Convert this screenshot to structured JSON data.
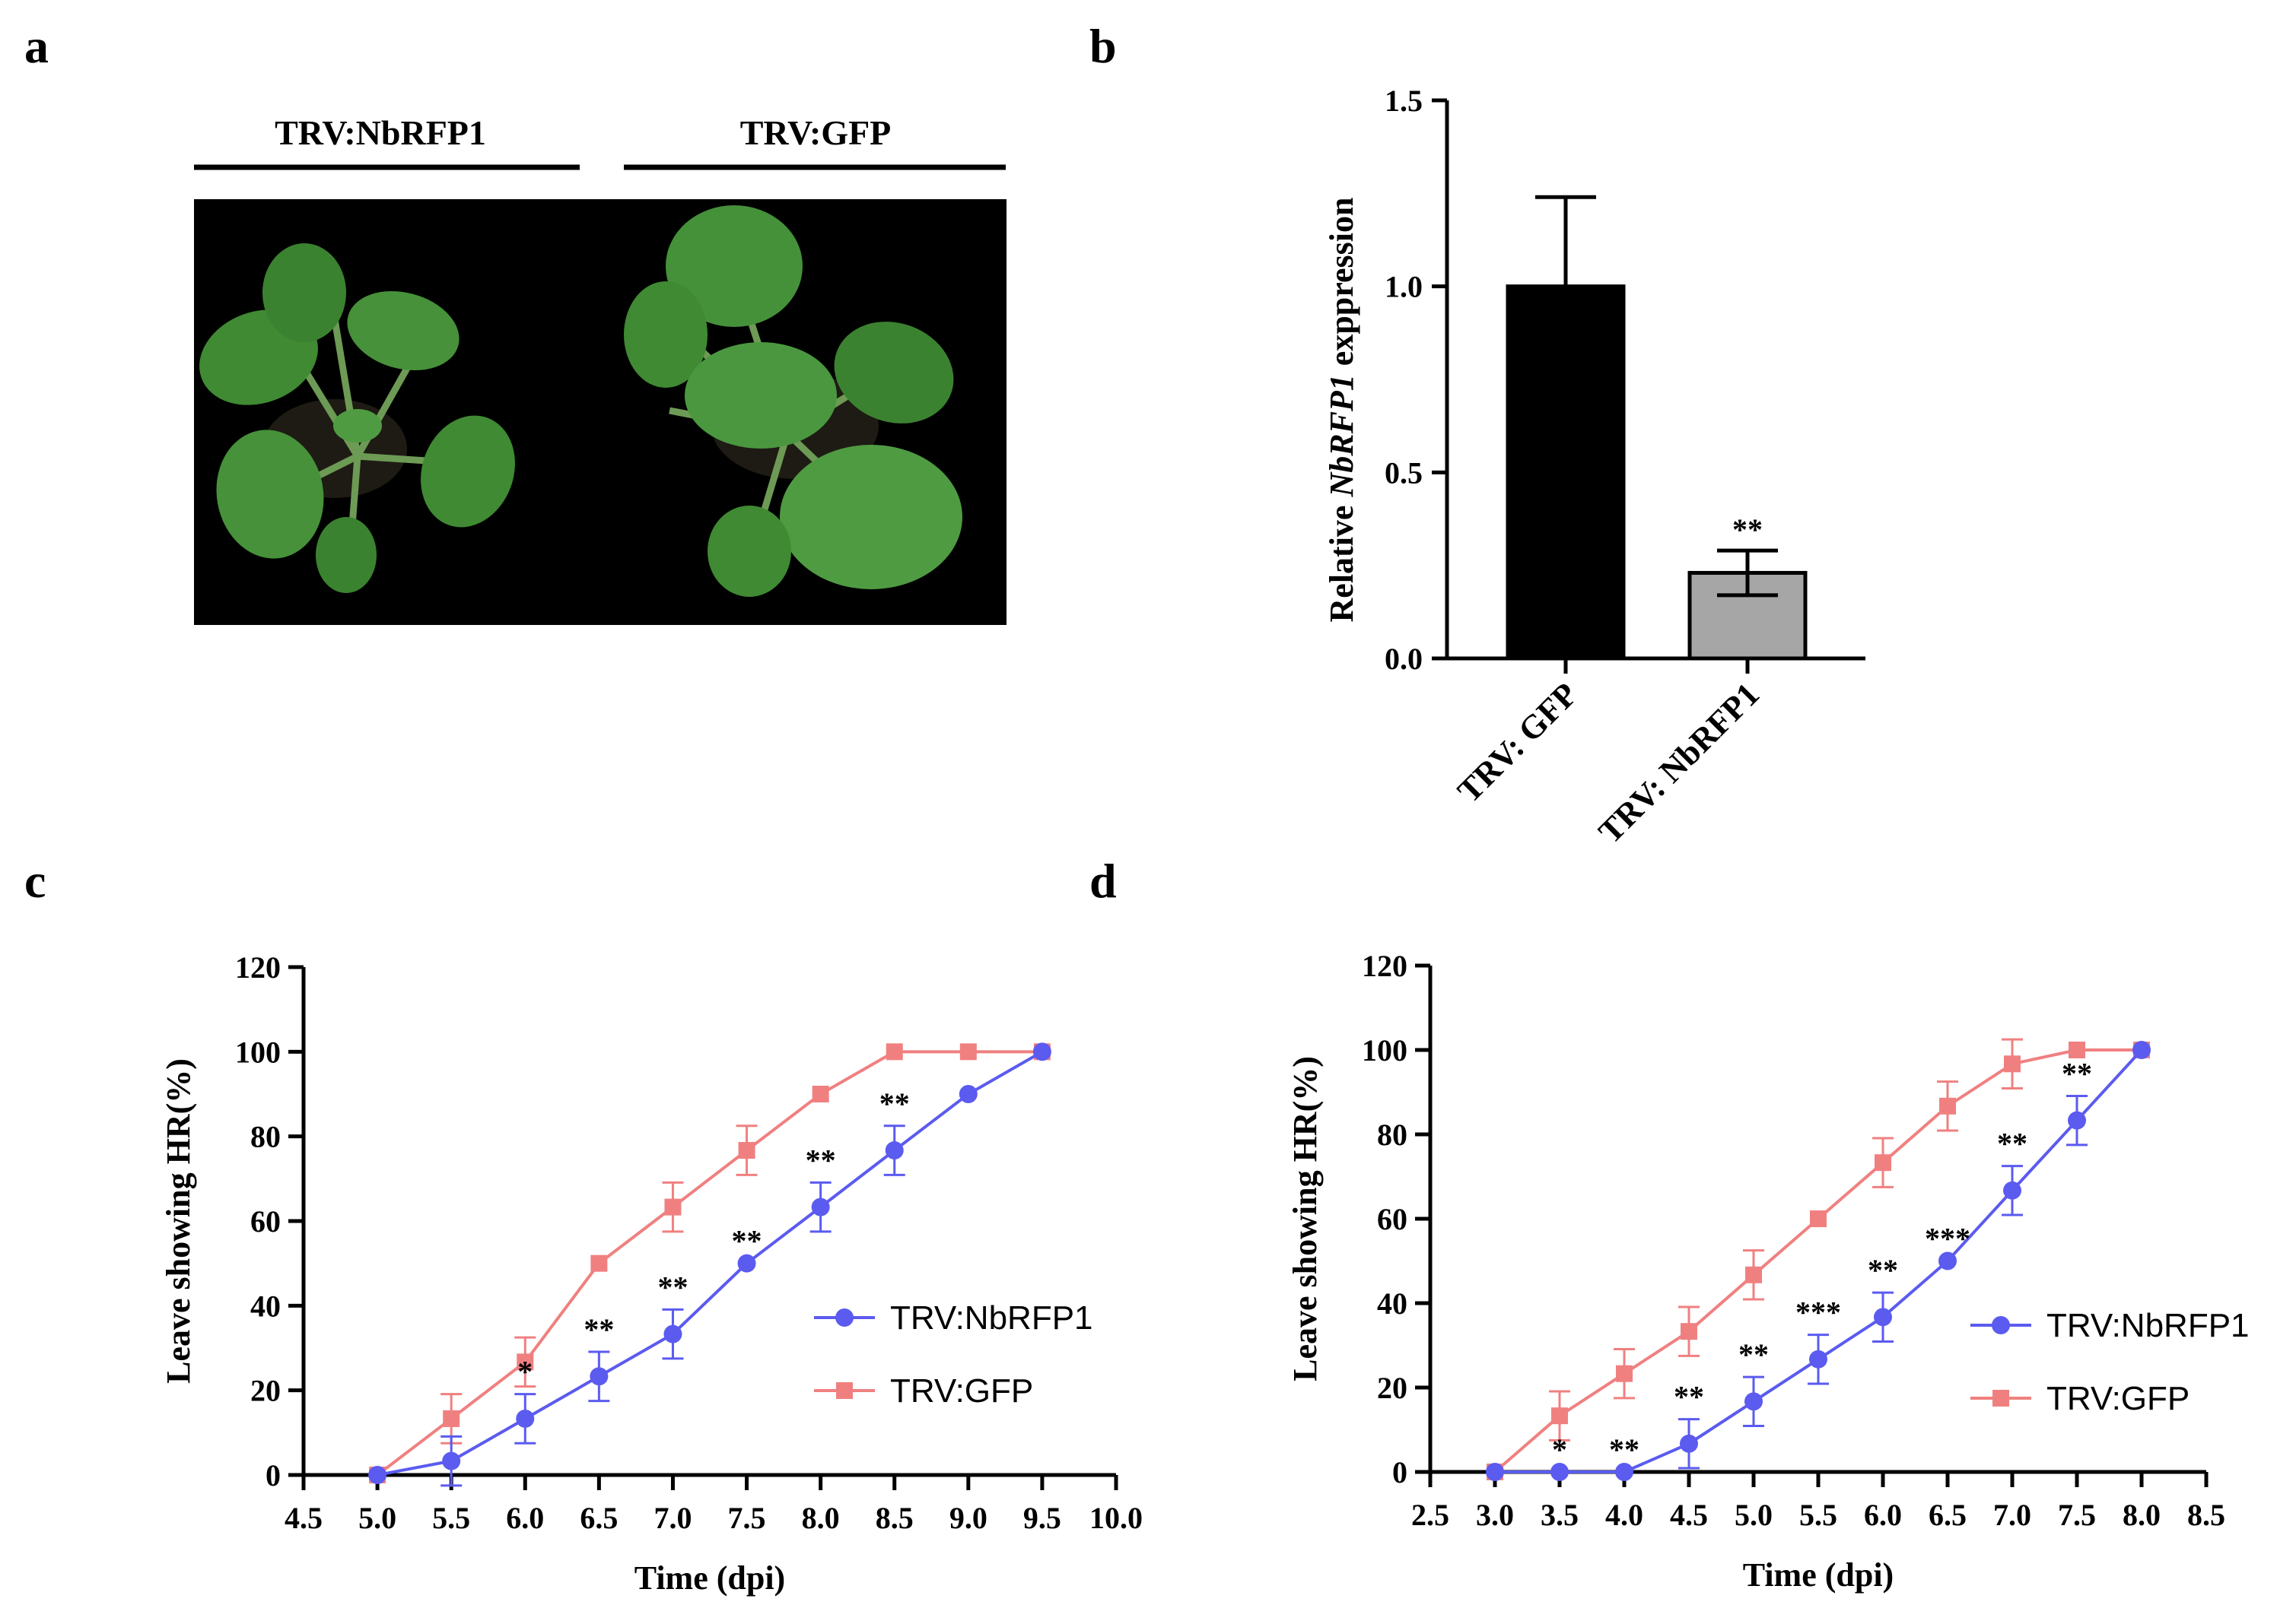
{
  "panels": {
    "a": {
      "letter": "a",
      "label_left": "TRV:NbRFP1",
      "label_right": "TRV:GFP"
    },
    "b": {
      "letter": "b"
    },
    "c": {
      "letter": "c"
    },
    "d": {
      "letter": "d"
    }
  },
  "chart_data": [
    {
      "id": "b",
      "type": "bar",
      "ylabel_prefix": "Relative ",
      "ylabel_gene": "NbRFP1",
      "ylabel_suffix": " exppression",
      "categories": [
        "TRV: GFP",
        "TRV: NbRFP1"
      ],
      "values": [
        1.0,
        0.23
      ],
      "errors": [
        0.24,
        0.06
      ],
      "bar_colors": [
        "#000000",
        "#a6a6a6"
      ],
      "significance": [
        "",
        "**"
      ],
      "ylim": [
        0,
        1.5
      ],
      "yticks": [
        "0.0",
        "0.5",
        "1.0",
        "1.5"
      ],
      "ytick_values": [
        0,
        0.5,
        1.0,
        1.5
      ]
    },
    {
      "id": "c",
      "type": "line",
      "xlabel": "Time (dpi)",
      "ylabel": "Leave showing HR(%)",
      "xlim": [
        4.5,
        10.0
      ],
      "ylim": [
        0,
        120
      ],
      "xticks": [
        "4.5",
        "5.0",
        "5.5",
        "6.0",
        "6.5",
        "7.0",
        "7.5",
        "8.0",
        "8.5",
        "9.0",
        "9.5",
        "10.0"
      ],
      "xtick_values": [
        4.5,
        5.0,
        5.5,
        6.0,
        6.5,
        7.0,
        7.5,
        8.0,
        8.5,
        9.0,
        9.5,
        10.0
      ],
      "yticks": [
        "0",
        "20",
        "40",
        "60",
        "80",
        "100",
        "120"
      ],
      "ytick_values": [
        0,
        20,
        40,
        60,
        80,
        100,
        120
      ],
      "series": [
        {
          "name": "TRV:NbRFP1",
          "color": "#5b5bf0",
          "marker": "circle",
          "x": [
            5.0,
            5.5,
            6.0,
            6.5,
            7.0,
            7.5,
            8.0,
            8.5,
            9.0,
            9.5
          ],
          "y": [
            0,
            3.3,
            13.3,
            23.3,
            33.3,
            50,
            63.3,
            76.7,
            90,
            100
          ],
          "err": [
            0,
            5.8,
            5.8,
            5.8,
            5.8,
            0,
            5.8,
            5.8,
            0,
            0
          ]
        },
        {
          "name": "TRV:GFP",
          "color": "#f08080",
          "marker": "square",
          "x": [
            5.0,
            5.5,
            6.0,
            6.5,
            7.0,
            7.5,
            8.0,
            8.5,
            9.0,
            9.5
          ],
          "y": [
            0,
            13.3,
            26.7,
            50,
            63.3,
            76.7,
            90,
            100,
            100,
            100
          ],
          "err": [
            0,
            5.8,
            5.8,
            0,
            5.8,
            5.8,
            0,
            0,
            0,
            0
          ]
        }
      ],
      "significance": [
        {
          "x": 6.0,
          "y": 13.3,
          "label": "*"
        },
        {
          "x": 6.5,
          "y": 23.3,
          "label": "**"
        },
        {
          "x": 7.0,
          "y": 33.3,
          "label": "**"
        },
        {
          "x": 7.5,
          "y": 50,
          "label": "**"
        },
        {
          "x": 8.0,
          "y": 63.3,
          "label": "**"
        },
        {
          "x": 8.5,
          "y": 76.7,
          "label": "**"
        }
      ],
      "legend_position": "center-right"
    },
    {
      "id": "d",
      "type": "line",
      "xlabel": "Time (dpi)",
      "ylabel": "Leave showing HR(%)",
      "xlim": [
        2.5,
        8.5
      ],
      "ylim": [
        0,
        120
      ],
      "xticks": [
        "2.5",
        "3.0",
        "3.5",
        "4.0",
        "4.5",
        "5.0",
        "5.5",
        "6.0",
        "6.5",
        "7.0",
        "7.5",
        "8.0",
        "8.5"
      ],
      "xtick_values": [
        2.5,
        3.0,
        3.5,
        4.0,
        4.5,
        5.0,
        5.5,
        6.0,
        6.5,
        7.0,
        7.5,
        8.0,
        8.5
      ],
      "yticks": [
        "0",
        "20",
        "40",
        "60",
        "80",
        "100",
        "120"
      ],
      "ytick_values": [
        0,
        20,
        40,
        60,
        80,
        100,
        120
      ],
      "series": [
        {
          "name": "TRV:NbRFP1",
          "color": "#5b5bf0",
          "marker": "circle",
          "x": [
            3.0,
            3.5,
            4.0,
            4.5,
            5.0,
            5.5,
            6.0,
            6.5,
            7.0,
            7.5,
            8.0
          ],
          "y": [
            0,
            0,
            0,
            6.7,
            16.7,
            26.7,
            36.7,
            50,
            66.7,
            83.3,
            100
          ],
          "err": [
            0,
            0,
            0,
            5.8,
            5.8,
            5.8,
            5.8,
            0,
            5.8,
            5.8,
            0
          ]
        },
        {
          "name": "TRV:GFP",
          "color": "#f08080",
          "marker": "square",
          "x": [
            3.0,
            3.5,
            4.0,
            4.5,
            5.0,
            5.5,
            6.0,
            6.5,
            7.0,
            7.5,
            8.0
          ],
          "y": [
            0,
            13.3,
            23.3,
            33.3,
            46.7,
            60,
            73.3,
            86.7,
            96.7,
            100,
            100
          ],
          "err": [
            0,
            5.8,
            5.8,
            5.8,
            5.8,
            0,
            5.8,
            5.8,
            5.8,
            0,
            0
          ]
        }
      ],
      "significance": [
        {
          "x": 3.5,
          "y": 0,
          "label": "*"
        },
        {
          "x": 4.0,
          "y": 0,
          "label": "**"
        },
        {
          "x": 4.5,
          "y": 6.7,
          "label": "**"
        },
        {
          "x": 5.0,
          "y": 16.7,
          "label": "**"
        },
        {
          "x": 5.5,
          "y": 26.7,
          "label": "***"
        },
        {
          "x": 6.0,
          "y": 36.7,
          "label": "**"
        },
        {
          "x": 6.5,
          "y": 50,
          "label": "***"
        },
        {
          "x": 7.0,
          "y": 66.7,
          "label": "**"
        },
        {
          "x": 7.5,
          "y": 83.3,
          "label": "**"
        }
      ],
      "legend_position": "center-right"
    }
  ]
}
